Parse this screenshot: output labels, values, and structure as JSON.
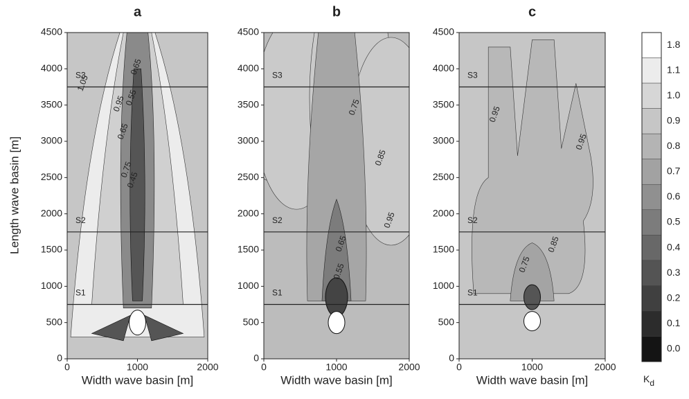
{
  "chart_data": [
    {
      "type": "contour",
      "title": "a",
      "xlabel": "Width wave basin [m]",
      "ylabel": "Length wave basin [m]",
      "xlim": [
        0,
        2000
      ],
      "ylim": [
        0,
        4500
      ],
      "xticks": [
        0,
        1000,
        2000
      ],
      "yticks": [
        0,
        500,
        1000,
        1500,
        2000,
        2500,
        3000,
        3500,
        4000,
        4500
      ],
      "sections": [
        {
          "y": 750,
          "label": "S1"
        },
        {
          "y": 1750,
          "label": "S2"
        },
        {
          "y": 3750,
          "label": "S3"
        }
      ],
      "contour_labels": [
        {
          "x": 985,
          "y": 4025,
          "level": 0.65
        },
        {
          "x": 227,
          "y": 3800,
          "level": 1.05
        },
        {
          "x": 916,
          "y": 3600,
          "level": 0.55
        },
        {
          "x": 739,
          "y": 3516,
          "level": 0.95
        },
        {
          "x": 798,
          "y": 3134,
          "level": 0.65
        },
        {
          "x": 847,
          "y": 2608,
          "level": 0.75
        },
        {
          "x": 936,
          "y": 2465,
          "level": 0.45
        }
      ]
    },
    {
      "type": "contour",
      "title": "b",
      "xlabel": "Width wave basin [m]",
      "xlim": [
        0,
        2000
      ],
      "ylim": [
        0,
        4500
      ],
      "xticks": [
        0,
        1000,
        2000
      ],
      "yticks": [
        0,
        500,
        1000,
        1500,
        2000,
        2500,
        3000,
        3500,
        4000,
        4500
      ],
      "sections": [
        {
          "y": 750,
          "label": "S1"
        },
        {
          "y": 1750,
          "label": "S2"
        },
        {
          "y": 3750,
          "label": "S3"
        }
      ],
      "contour_labels": [
        {
          "x": 1248,
          "y": 3468,
          "level": 0.75
        },
        {
          "x": 1610,
          "y": 2771,
          "level": 0.85
        },
        {
          "x": 1733,
          "y": 1911,
          "level": 0.95
        },
        {
          "x": 1067,
          "y": 1586,
          "level": 0.65
        },
        {
          "x": 1038,
          "y": 1204,
          "level": 0.55
        }
      ]
    },
    {
      "type": "contour",
      "title": "c",
      "xlabel": "Width wave basin [m]",
      "xlim": [
        0,
        2000
      ],
      "ylim": [
        0,
        4500
      ],
      "xticks": [
        0,
        1000,
        2000
      ],
      "yticks": [
        0,
        500,
        1000,
        1500,
        2000,
        2500,
        3000,
        3500,
        4000,
        4500
      ],
      "sections": [
        {
          "y": 750,
          "label": "S1"
        },
        {
          "y": 1750,
          "label": "S2"
        },
        {
          "y": 3750,
          "label": "S3"
        }
      ],
      "contour_labels": [
        {
          "x": 493,
          "y": 3371,
          "level": 0.95
        },
        {
          "x": 1678,
          "y": 2990,
          "level": 0.95
        },
        {
          "x": 1298,
          "y": 1576,
          "level": 0.85
        },
        {
          "x": 900,
          "y": 1299,
          "level": 0.75
        }
      ]
    },
    {
      "type": "colorbar",
      "label": "K",
      "label_sub": "d",
      "levels": [
        1.8,
        1.1,
        {
          "value": 1.0,
          "label": "1.0"
        },
        0.9,
        0.8,
        0.7,
        0.6,
        0.5,
        0.4,
        0.3,
        0.2,
        0.1,
        {
          "value": 0.0,
          "label": "0.0"
        }
      ],
      "colors": [
        "#ffffff",
        "#ececec",
        "#d6d6d6",
        "#c6c6c6",
        "#b4b4b4",
        "#a2a2a2",
        "#909090",
        "#7c7c7c",
        "#686868",
        "#545454",
        "#404040",
        "#2c2c2c",
        "#141414"
      ]
    }
  ]
}
